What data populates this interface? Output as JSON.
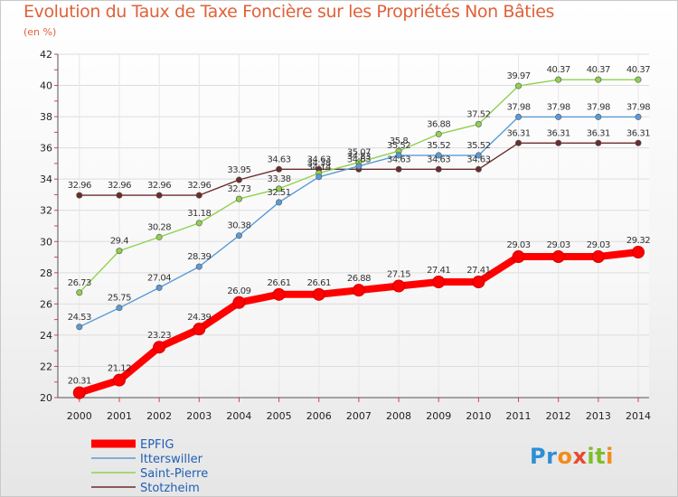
{
  "title": "Evolution du Taux de Taxe Foncière sur les Propriétés Non Bâties",
  "subtitle": "(en %)",
  "logo": "Proxiti",
  "chart_data": {
    "type": "line",
    "title": "Evolution du Taux de Taxe Foncière sur les Propriétés Non Bâties",
    "ylabel": "(en %)",
    "xlabel": "",
    "x": [
      2000,
      2001,
      2002,
      2003,
      2004,
      2005,
      2006,
      2007,
      2008,
      2009,
      2010,
      2011,
      2012,
      2013,
      2014
    ],
    "ylim": [
      20,
      42
    ],
    "yticks": [
      20,
      22,
      24,
      26,
      28,
      30,
      32,
      34,
      36,
      38,
      40,
      42
    ],
    "grid": true,
    "legend_position": "bottom-left",
    "series": [
      {
        "name": "EPFIG",
        "color": "#ff0000",
        "values": [
          20.31,
          21.12,
          23.23,
          24.39,
          26.09,
          26.61,
          26.61,
          26.88,
          27.15,
          27.41,
          27.41,
          29.03,
          29.03,
          29.03,
          29.32
        ],
        "labels": [
          "20.31",
          "21.12",
          "23.23",
          "24.39",
          "26.09",
          "26.61",
          "26.61",
          "26.88",
          "27.15",
          "27.41",
          "27.41",
          "29.03",
          "29.03",
          "29.03",
          "29.32"
        ]
      },
      {
        "name": "Itterswiller",
        "color": "#5b9bd5",
        "values": [
          24.53,
          25.75,
          27.04,
          28.39,
          30.38,
          32.51,
          34.14,
          34.83,
          35.52,
          35.52,
          35.52,
          37.98,
          37.98,
          37.98,
          37.98
        ],
        "labels": [
          "24.53",
          "25.75",
          "27.04",
          "28.39",
          "30.38",
          "32.51",
          "34.14",
          "34.83",
          "35.52",
          "35.52",
          "35.52",
          "37.98",
          "37.98",
          "37.98",
          "37.98"
        ]
      },
      {
        "name": "Saint-Pierre",
        "color": "#8fd14f",
        "values": [
          26.73,
          29.4,
          30.28,
          31.18,
          32.73,
          33.38,
          34.38,
          35.07,
          35.8,
          36.88,
          37.52,
          39.97,
          40.37,
          40.37,
          40.37
        ],
        "labels": [
          "26.73",
          "29.4",
          "30.28",
          "31.18",
          "32.73",
          "33.38",
          "34.38",
          "35.07",
          "35.8",
          "36.88",
          "37.52",
          "39.97",
          "40.37",
          "40.37",
          "40.37"
        ]
      },
      {
        "name": "Stotzheim",
        "color": "#6b2c2c",
        "values": [
          32.96,
          32.96,
          32.96,
          32.96,
          33.95,
          34.63,
          34.63,
          34.63,
          34.63,
          34.63,
          34.63,
          36.31,
          36.31,
          36.31,
          36.31
        ],
        "labels": [
          "32.96",
          "32.96",
          "32.96",
          "32.96",
          "33.95",
          "34.63",
          "34.63",
          "34.63",
          "34.63",
          "34.63",
          "34.63",
          "36.31",
          "36.31",
          "36.31",
          "36.31"
        ]
      }
    ]
  }
}
